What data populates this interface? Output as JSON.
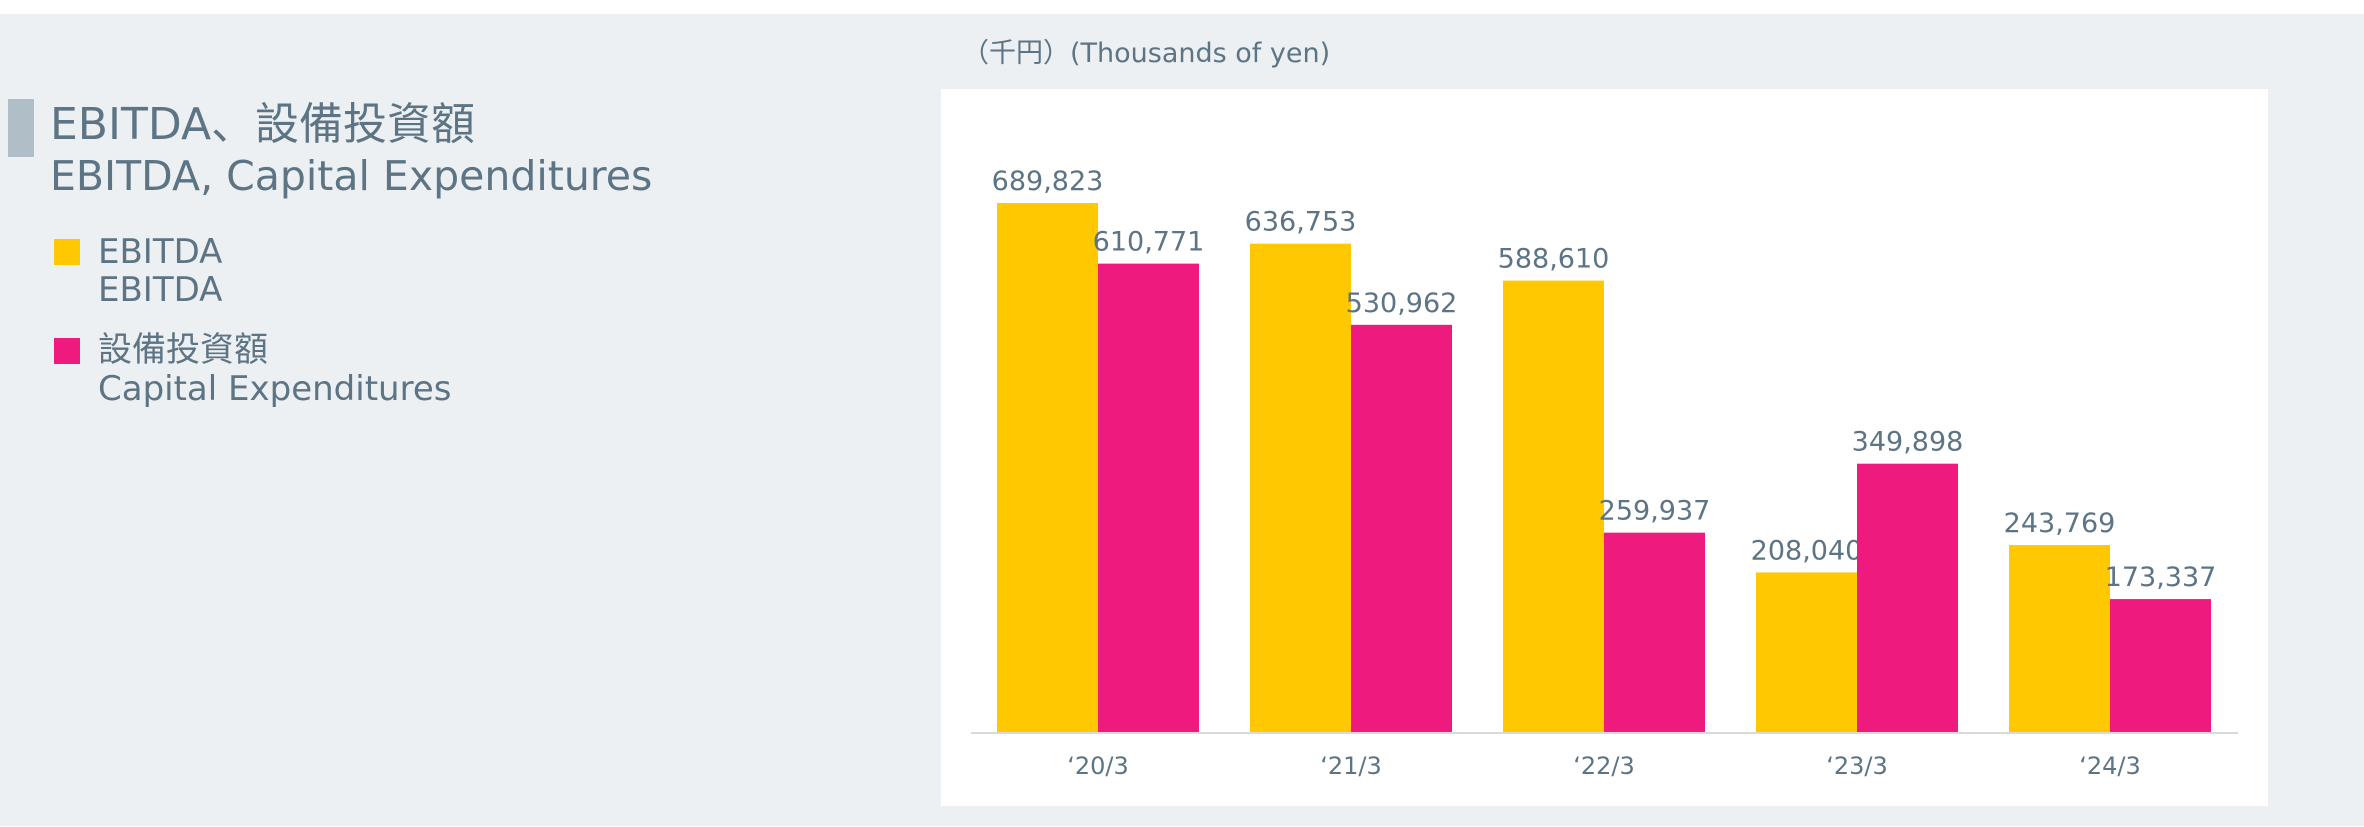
{
  "title": {
    "ja": "EBITDA、設備投資額",
    "en": "EBITDA, Capital Expenditures"
  },
  "legend": [
    {
      "ja": "EBITDA",
      "en": "EBITDA",
      "color": "#ffc800"
    },
    {
      "ja": "設備投資額",
      "en": "Capital Expenditures",
      "color": "#ee1a7e"
    }
  ],
  "unit_label": "（千円）(Thousands of yen)",
  "chart_data": {
    "type": "bar",
    "categories": [
      "‘20/3",
      "‘21/3",
      "‘22/3",
      "‘23/3",
      "‘24/3"
    ],
    "series": [
      {
        "name": "EBITDA",
        "color": "#ffc800",
        "values": [
          689823,
          636753,
          588610,
          208040,
          243769
        ]
      },
      {
        "name": "設備投資額 Capital Expenditures",
        "color": "#ee1a7e",
        "values": [
          610771,
          530962,
          259937,
          349898,
          173337
        ]
      }
    ],
    "ylim": [
      0,
      760000
    ],
    "grid": false,
    "legend_position": "left"
  }
}
